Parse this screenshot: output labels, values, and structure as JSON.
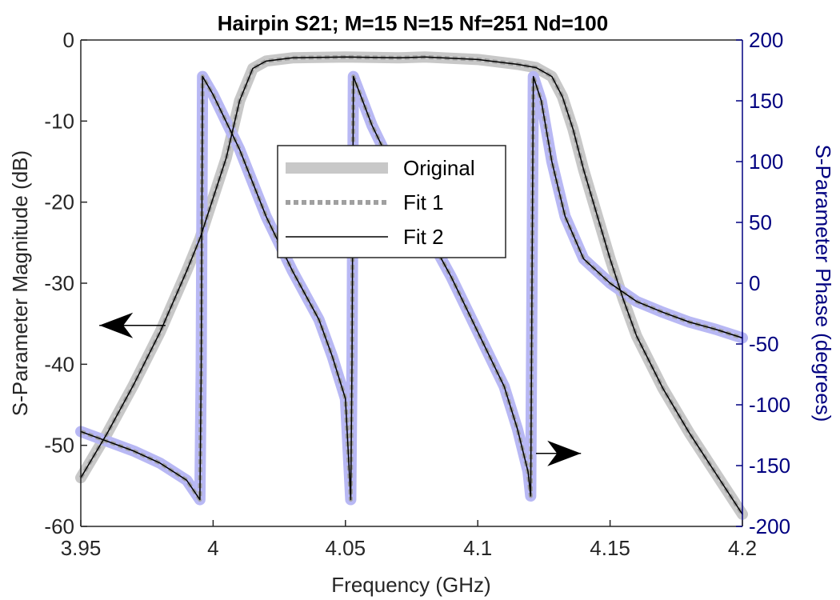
{
  "chart_data": {
    "type": "line",
    "title": "Hairpin S21; M=15 N=15 Nf=251 Nd=100",
    "xlabel": "Frequency (GHz)",
    "ylabel_left": "S-Parameter Magnitude (dB)",
    "ylabel_right": "S-Parameter Phase (degrees)",
    "xlim": [
      3.95,
      4.2
    ],
    "ylim_left": [
      -60,
      0
    ],
    "ylim_right": [
      -200,
      200
    ],
    "x_ticks": [
      "3.95",
      "4",
      "4.05",
      "4.1",
      "4.15",
      "4.2"
    ],
    "y_left_ticks": [
      "0",
      "-10",
      "-20",
      "-30",
      "-40",
      "-50",
      "-60"
    ],
    "y_right_ticks": [
      "200",
      "150",
      "100",
      "50",
      "0",
      "-50",
      "-100",
      "-150",
      "-200"
    ],
    "grid": false,
    "legend_position": "upper-center",
    "legend": [
      "Original",
      "Fit 1",
      "Fit 2"
    ],
    "colors": {
      "original_magnitude": "#c8c8c8",
      "original_phase": "#b8b8f4",
      "fit1": "#a0a0a0",
      "fit2": "#000000",
      "right_axis": "#000080",
      "left_axis": "#000000"
    },
    "series": [
      {
        "name": "Original",
        "axis": "left",
        "quantity": "magnitude_dB",
        "points": [
          [
            3.95,
            -54.0
          ],
          [
            3.96,
            -48.5
          ],
          [
            3.97,
            -42.5
          ],
          [
            3.98,
            -36.0
          ],
          [
            3.99,
            -28.5
          ],
          [
            3.995,
            -24.5
          ],
          [
            4.0,
            -19.5
          ],
          [
            4.005,
            -14.5
          ],
          [
            4.01,
            -7.5
          ],
          [
            4.015,
            -3.5
          ],
          [
            4.02,
            -2.6
          ],
          [
            4.03,
            -2.2
          ],
          [
            4.05,
            -2.1
          ],
          [
            4.07,
            -2.2
          ],
          [
            4.08,
            -2.1
          ],
          [
            4.1,
            -2.4
          ],
          [
            4.115,
            -3.0
          ],
          [
            4.122,
            -3.4
          ],
          [
            4.128,
            -4.5
          ],
          [
            4.132,
            -7.0
          ],
          [
            4.136,
            -11.0
          ],
          [
            4.14,
            -16.0
          ],
          [
            4.145,
            -21.5
          ],
          [
            4.15,
            -27.0
          ],
          [
            4.155,
            -32.0
          ],
          [
            4.16,
            -36.5
          ],
          [
            4.17,
            -43.0
          ],
          [
            4.18,
            -48.5
          ],
          [
            4.19,
            -53.5
          ],
          [
            4.2,
            -58.5
          ]
        ]
      },
      {
        "name": "Original",
        "axis": "right",
        "quantity": "phase_deg",
        "points": [
          [
            3.95,
            -122
          ],
          [
            3.96,
            -130
          ],
          [
            3.97,
            -138
          ],
          [
            3.98,
            -148
          ],
          [
            3.99,
            -162
          ],
          [
            3.995,
            -178
          ],
          [
            3.9955,
            -70
          ],
          [
            3.996,
            170
          ],
          [
            4.0,
            155
          ],
          [
            4.01,
            110
          ],
          [
            4.02,
            55
          ],
          [
            4.03,
            10
          ],
          [
            4.04,
            -30
          ],
          [
            4.045,
            -60
          ],
          [
            4.05,
            -95
          ],
          [
            4.052,
            -178
          ],
          [
            4.0525,
            -60
          ],
          [
            4.053,
            170
          ],
          [
            4.06,
            130
          ],
          [
            4.07,
            85
          ],
          [
            4.08,
            45
          ],
          [
            4.09,
            5
          ],
          [
            4.1,
            -40
          ],
          [
            4.11,
            -85
          ],
          [
            4.115,
            -120
          ],
          [
            4.119,
            -155
          ],
          [
            4.12,
            -175
          ],
          [
            4.1205,
            0
          ],
          [
            4.121,
            170
          ],
          [
            4.124,
            150
          ],
          [
            4.128,
            100
          ],
          [
            4.133,
            55
          ],
          [
            4.14,
            20
          ],
          [
            4.15,
            0
          ],
          [
            4.16,
            -15
          ],
          [
            4.17,
            -24
          ],
          [
            4.18,
            -32
          ],
          [
            4.19,
            -38
          ],
          [
            4.2,
            -45
          ]
        ]
      },
      {
        "name": "Fit 1",
        "axis": "left",
        "quantity": "magnitude_dB",
        "points": [
          [
            3.95,
            -54.0
          ],
          [
            3.96,
            -48.5
          ],
          [
            3.97,
            -42.5
          ],
          [
            3.98,
            -36.0
          ],
          [
            3.99,
            -28.5
          ],
          [
            3.995,
            -24.5
          ],
          [
            4.0,
            -19.5
          ],
          [
            4.005,
            -14.5
          ],
          [
            4.01,
            -7.5
          ],
          [
            4.015,
            -3.5
          ],
          [
            4.02,
            -2.6
          ],
          [
            4.03,
            -2.2
          ],
          [
            4.05,
            -2.1
          ],
          [
            4.07,
            -2.2
          ],
          [
            4.08,
            -2.1
          ],
          [
            4.1,
            -2.4
          ],
          [
            4.115,
            -3.0
          ],
          [
            4.122,
            -3.4
          ],
          [
            4.128,
            -4.5
          ],
          [
            4.132,
            -7.0
          ],
          [
            4.136,
            -11.0
          ],
          [
            4.14,
            -16.0
          ],
          [
            4.145,
            -21.5
          ],
          [
            4.15,
            -27.0
          ],
          [
            4.155,
            -32.0
          ],
          [
            4.16,
            -36.5
          ],
          [
            4.17,
            -43.0
          ],
          [
            4.18,
            -48.5
          ],
          [
            4.19,
            -53.5
          ],
          [
            4.2,
            -58.5
          ]
        ]
      },
      {
        "name": "Fit 1",
        "axis": "right",
        "quantity": "phase_deg",
        "points": [
          [
            3.95,
            -122
          ],
          [
            3.96,
            -130
          ],
          [
            3.97,
            -138
          ],
          [
            3.98,
            -148
          ],
          [
            3.99,
            -162
          ],
          [
            3.995,
            -178
          ],
          [
            3.9955,
            -70
          ],
          [
            3.996,
            170
          ],
          [
            4.0,
            155
          ],
          [
            4.01,
            110
          ],
          [
            4.02,
            55
          ],
          [
            4.03,
            10
          ],
          [
            4.04,
            -30
          ],
          [
            4.045,
            -60
          ],
          [
            4.05,
            -95
          ],
          [
            4.052,
            -178
          ],
          [
            4.0525,
            -60
          ],
          [
            4.053,
            170
          ],
          [
            4.06,
            130
          ],
          [
            4.07,
            85
          ],
          [
            4.08,
            45
          ],
          [
            4.09,
            5
          ],
          [
            4.1,
            -40
          ],
          [
            4.11,
            -85
          ],
          [
            4.115,
            -120
          ],
          [
            4.119,
            -155
          ],
          [
            4.12,
            -175
          ],
          [
            4.1205,
            0
          ],
          [
            4.121,
            170
          ],
          [
            4.124,
            150
          ],
          [
            4.128,
            100
          ],
          [
            4.133,
            55
          ],
          [
            4.14,
            20
          ],
          [
            4.15,
            0
          ],
          [
            4.16,
            -15
          ],
          [
            4.17,
            -24
          ],
          [
            4.18,
            -32
          ],
          [
            4.19,
            -38
          ],
          [
            4.2,
            -45
          ]
        ]
      },
      {
        "name": "Fit 2",
        "axis": "left",
        "quantity": "magnitude_dB",
        "points": [
          [
            3.95,
            -54.0
          ],
          [
            3.96,
            -48.5
          ],
          [
            3.97,
            -42.5
          ],
          [
            3.98,
            -36.0
          ],
          [
            3.99,
            -28.5
          ],
          [
            3.995,
            -24.5
          ],
          [
            4.0,
            -19.5
          ],
          [
            4.005,
            -14.5
          ],
          [
            4.01,
            -7.5
          ],
          [
            4.015,
            -3.5
          ],
          [
            4.02,
            -2.6
          ],
          [
            4.03,
            -2.2
          ],
          [
            4.05,
            -2.1
          ],
          [
            4.07,
            -2.2
          ],
          [
            4.08,
            -2.1
          ],
          [
            4.1,
            -2.4
          ],
          [
            4.115,
            -3.0
          ],
          [
            4.122,
            -3.4
          ],
          [
            4.128,
            -4.5
          ],
          [
            4.132,
            -7.0
          ],
          [
            4.136,
            -11.0
          ],
          [
            4.14,
            -16.0
          ],
          [
            4.145,
            -21.5
          ],
          [
            4.15,
            -27.0
          ],
          [
            4.155,
            -32.0
          ],
          [
            4.16,
            -36.5
          ],
          [
            4.17,
            -43.0
          ],
          [
            4.18,
            -48.5
          ],
          [
            4.19,
            -53.5
          ],
          [
            4.2,
            -58.5
          ]
        ]
      },
      {
        "name": "Fit 2",
        "axis": "right",
        "quantity": "phase_deg",
        "points": [
          [
            3.95,
            -122
          ],
          [
            3.96,
            -130
          ],
          [
            3.97,
            -138
          ],
          [
            3.98,
            -148
          ],
          [
            3.99,
            -162
          ],
          [
            3.995,
            -178
          ],
          [
            3.9955,
            -70
          ],
          [
            3.996,
            170
          ],
          [
            4.0,
            155
          ],
          [
            4.01,
            110
          ],
          [
            4.02,
            55
          ],
          [
            4.03,
            10
          ],
          [
            4.04,
            -30
          ],
          [
            4.045,
            -60
          ],
          [
            4.05,
            -95
          ],
          [
            4.052,
            -178
          ],
          [
            4.0525,
            -60
          ],
          [
            4.053,
            170
          ],
          [
            4.06,
            130
          ],
          [
            4.07,
            85
          ],
          [
            4.08,
            45
          ],
          [
            4.09,
            5
          ],
          [
            4.1,
            -40
          ],
          [
            4.11,
            -85
          ],
          [
            4.115,
            -120
          ],
          [
            4.119,
            -155
          ],
          [
            4.12,
            -175
          ],
          [
            4.1205,
            0
          ],
          [
            4.121,
            170
          ],
          [
            4.124,
            150
          ],
          [
            4.128,
            100
          ],
          [
            4.133,
            55
          ],
          [
            4.14,
            20
          ],
          [
            4.15,
            0
          ],
          [
            4.16,
            -15
          ],
          [
            4.17,
            -24
          ],
          [
            4.18,
            -32
          ],
          [
            4.19,
            -38
          ],
          [
            4.2,
            -45
          ]
        ]
      }
    ],
    "annotations": [
      {
        "type": "arrow",
        "direction": "left",
        "points_to_axis": "left",
        "from": [
          3.982,
          -35.2
        ],
        "to": [
          3.957,
          -35.2
        ]
      },
      {
        "type": "arrow",
        "direction": "right",
        "points_to_axis": "right",
        "from": [
          4.122,
          -140
        ],
        "to": [
          4.139,
          -140
        ]
      }
    ]
  }
}
